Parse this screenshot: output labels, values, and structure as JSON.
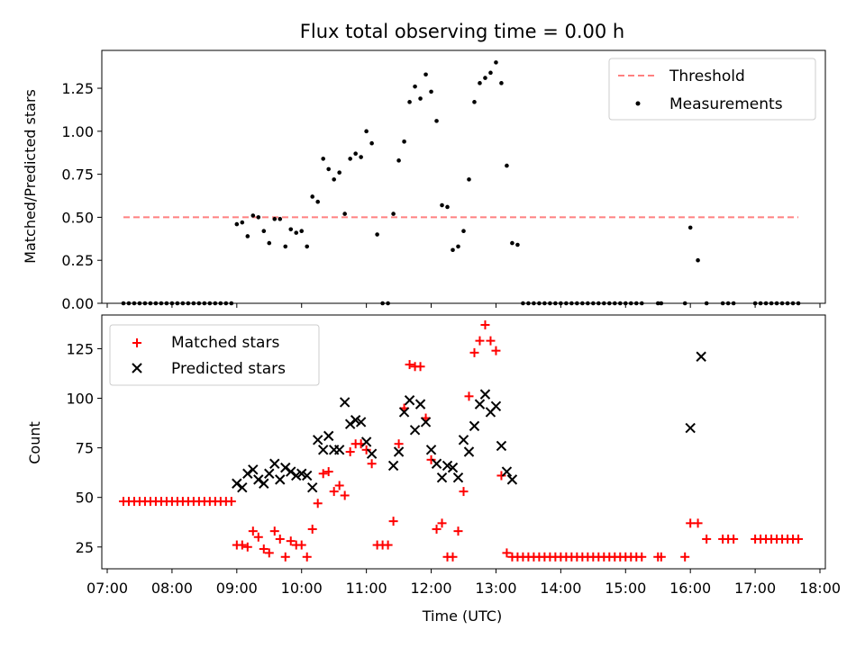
{
  "chart_data": [
    {
      "type": "scatter",
      "title": "Flux total observing time = 0.00 h",
      "xlabel": "",
      "ylabel": "Matched/Predicted stars",
      "xlim": [
        "06:55",
        "18:05"
      ],
      "ylim": [
        0,
        1.47
      ],
      "x_ticks": [
        "07:00",
        "08:00",
        "09:00",
        "10:00",
        "11:00",
        "12:00",
        "13:00",
        "14:00",
        "15:00",
        "16:00",
        "17:00",
        "18:00"
      ],
      "y_ticks": [
        "0.00",
        "0.25",
        "0.50",
        "0.75",
        "1.00",
        "1.25"
      ],
      "legend": {
        "placement": "top-right",
        "entries": [
          "Threshold",
          "Measurements"
        ]
      },
      "threshold": {
        "name": "Threshold",
        "value": 0.5,
        "x_range": [
          "07:15",
          "17:40"
        ],
        "color": "#ff8080"
      },
      "series": [
        {
          "name": "Measurements",
          "color": "#000000",
          "marker": "dot",
          "x": [
            "07:15",
            "07:20",
            "07:25",
            "07:30",
            "07:35",
            "07:40",
            "07:45",
            "07:50",
            "07:55",
            "08:00",
            "08:05",
            "08:10",
            "08:15",
            "08:20",
            "08:25",
            "08:30",
            "08:35",
            "08:40",
            "08:45",
            "08:50",
            "08:55",
            "09:00",
            "09:05",
            "09:10",
            "09:15",
            "09:20",
            "09:25",
            "09:30",
            "09:35",
            "09:40",
            "09:45",
            "09:50",
            "09:55",
            "10:00",
            "10:05",
            "10:10",
            "10:15",
            "10:20",
            "10:25",
            "10:30",
            "10:35",
            "10:40",
            "10:45",
            "10:50",
            "10:55",
            "11:00",
            "11:05",
            "11:10",
            "11:15",
            "11:20",
            "11:25",
            "11:30",
            "11:35",
            "11:40",
            "11:45",
            "11:50",
            "11:55",
            "12:00",
            "12:05",
            "12:10",
            "12:15",
            "12:20",
            "12:25",
            "12:30",
            "12:35",
            "12:40",
            "12:45",
            "12:50",
            "12:55",
            "13:00",
            "13:05",
            "13:10",
            "13:15",
            "13:20",
            "13:25",
            "13:30",
            "13:35",
            "13:40",
            "13:45",
            "13:50",
            "13:55",
            "14:00",
            "14:05",
            "14:10",
            "14:15",
            "14:20",
            "14:25",
            "14:30",
            "14:35",
            "14:40",
            "14:45",
            "14:50",
            "14:55",
            "15:00",
            "15:05",
            "15:10",
            "15:15",
            "15:30",
            "15:33",
            "15:55",
            "16:00",
            "16:07",
            "16:15",
            "16:30",
            "16:35",
            "16:40",
            "17:00",
            "17:05",
            "17:10",
            "17:15",
            "17:20",
            "17:25",
            "17:30",
            "17:35",
            "17:40"
          ],
          "y": [
            0,
            0,
            0,
            0,
            0,
            0,
            0,
            0,
            0,
            0,
            0,
            0,
            0,
            0,
            0,
            0,
            0,
            0,
            0,
            0,
            0,
            0.46,
            0.47,
            0.39,
            0.51,
            0.5,
            0.42,
            0.35,
            0.49,
            0.49,
            0.33,
            0.43,
            0.41,
            0.42,
            0.33,
            0.62,
            0.59,
            0.84,
            0.78,
            0.72,
            0.76,
            0.52,
            0.84,
            0.87,
            0.85,
            1.0,
            0.93,
            0.4,
            0,
            0,
            0.52,
            0.83,
            0.94,
            1.17,
            1.26,
            1.19,
            1.33,
            1.23,
            1.06,
            0.57,
            0.56,
            0.31,
            0.33,
            0.42,
            0.72,
            1.17,
            1.28,
            1.31,
            1.34,
            1.4,
            1.28,
            0.8,
            0.35,
            0.34,
            0,
            0,
            0,
            0,
            0,
            0,
            0,
            0,
            0,
            0,
            0,
            0,
            0,
            0,
            0,
            0,
            0,
            0,
            0,
            0,
            0,
            0,
            0,
            0,
            0,
            0,
            0.44,
            0.25,
            0,
            0,
            0,
            0,
            0,
            0,
            0,
            0,
            0,
            0,
            0,
            0,
            0
          ]
        }
      ]
    },
    {
      "type": "scatter",
      "title": "",
      "xlabel": "Time (UTC)",
      "ylabel": "Count",
      "xlim": [
        "06:55",
        "18:05"
      ],
      "ylim": [
        14,
        142
      ],
      "x_ticks": [
        "07:00",
        "08:00",
        "09:00",
        "10:00",
        "11:00",
        "12:00",
        "13:00",
        "14:00",
        "15:00",
        "16:00",
        "17:00",
        "18:00"
      ],
      "y_ticks": [
        "25",
        "50",
        "75",
        "100",
        "125"
      ],
      "legend": {
        "placement": "top-left",
        "entries": [
          "Matched stars",
          "Predicted stars"
        ]
      },
      "series": [
        {
          "name": "Matched stars",
          "color": "#ff0000",
          "marker": "plus",
          "x": [
            "07:15",
            "07:20",
            "07:25",
            "07:30",
            "07:35",
            "07:40",
            "07:45",
            "07:50",
            "07:55",
            "08:00",
            "08:05",
            "08:10",
            "08:15",
            "08:20",
            "08:25",
            "08:30",
            "08:35",
            "08:40",
            "08:45",
            "08:50",
            "08:55",
            "09:00",
            "09:05",
            "09:10",
            "09:15",
            "09:20",
            "09:25",
            "09:30",
            "09:35",
            "09:40",
            "09:45",
            "09:50",
            "09:55",
            "10:00",
            "10:05",
            "10:10",
            "10:15",
            "10:20",
            "10:25",
            "10:30",
            "10:35",
            "10:40",
            "10:45",
            "10:50",
            "10:55",
            "11:00",
            "11:05",
            "11:10",
            "11:15",
            "11:20",
            "11:25",
            "11:30",
            "11:35",
            "11:40",
            "11:45",
            "11:50",
            "11:55",
            "12:00",
            "12:05",
            "12:10",
            "12:15",
            "12:20",
            "12:25",
            "12:30",
            "12:35",
            "12:40",
            "12:45",
            "12:50",
            "12:55",
            "13:00",
            "13:05",
            "13:10",
            "13:15",
            "13:20",
            "13:25",
            "13:30",
            "13:35",
            "13:40",
            "13:45",
            "13:50",
            "13:55",
            "14:00",
            "14:05",
            "14:10",
            "14:15",
            "14:20",
            "14:25",
            "14:30",
            "14:35",
            "14:40",
            "14:45",
            "14:50",
            "14:55",
            "15:00",
            "15:05",
            "15:10",
            "15:15",
            "15:30",
            "15:33",
            "15:55",
            "16:00",
            "16:07",
            "16:15",
            "16:30",
            "16:35",
            "16:40",
            "17:00",
            "17:05",
            "17:10",
            "17:15",
            "17:20",
            "17:25",
            "17:30",
            "17:35",
            "17:40"
          ],
          "y": [
            48,
            48,
            48,
            48,
            48,
            48,
            48,
            48,
            48,
            48,
            48,
            48,
            48,
            48,
            48,
            48,
            48,
            48,
            48,
            48,
            48,
            26,
            26,
            25,
            33,
            30,
            24,
            22,
            33,
            29,
            20,
            28,
            26,
            26,
            20,
            34,
            47,
            62,
            63,
            53,
            56,
            51,
            73,
            77,
            77,
            74,
            67,
            26,
            26,
            26,
            38,
            77,
            95,
            117,
            116,
            116,
            90,
            69,
            34,
            37,
            20,
            20,
            33,
            53,
            101,
            123,
            129,
            137,
            129,
            124,
            61,
            22,
            20,
            20,
            20,
            20,
            20,
            20,
            20,
            20,
            20,
            20,
            20,
            20,
            20,
            20,
            20,
            20,
            20,
            20,
            20,
            20,
            20,
            20,
            20,
            20,
            20,
            20,
            20,
            20,
            37,
            37,
            29,
            29,
            29,
            29,
            29,
            29,
            29,
            29,
            29,
            29,
            29,
            29,
            29
          ]
        },
        {
          "name": "Predicted stars",
          "color": "#000000",
          "marker": "x",
          "x": [
            "09:00",
            "09:05",
            "09:10",
            "09:15",
            "09:20",
            "09:25",
            "09:30",
            "09:35",
            "09:40",
            "09:45",
            "09:50",
            "09:55",
            "10:00",
            "10:05",
            "10:10",
            "10:15",
            "10:20",
            "10:25",
            "10:30",
            "10:35",
            "10:40",
            "10:45",
            "10:50",
            "10:55",
            "11:00",
            "11:05",
            "11:25",
            "11:30",
            "11:35",
            "11:40",
            "11:45",
            "11:50",
            "11:55",
            "12:00",
            "12:05",
            "12:10",
            "12:15",
            "12:20",
            "12:25",
            "12:30",
            "12:35",
            "12:40",
            "12:45",
            "12:50",
            "12:55",
            "13:00",
            "13:05",
            "13:10",
            "13:15",
            "16:00",
            "16:10"
          ],
          "y": [
            57,
            55,
            62,
            64,
            59,
            57,
            62,
            67,
            59,
            65,
            63,
            61,
            62,
            61,
            55,
            79,
            74,
            81,
            74,
            74,
            98,
            87,
            89,
            88,
            78,
            72,
            66,
            73,
            93,
            99,
            84,
            97,
            88,
            74,
            67,
            60,
            66,
            65,
            60,
            79,
            73,
            86,
            97,
            102,
            93,
            96,
            76,
            63,
            59,
            85,
            121
          ]
        }
      ]
    }
  ]
}
